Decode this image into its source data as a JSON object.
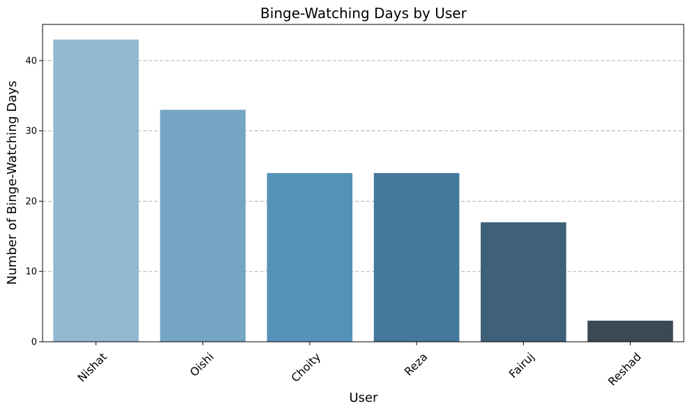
{
  "chart_data": {
    "type": "bar",
    "title": "Binge-Watching Days by User",
    "xlabel": "User",
    "ylabel": "Number of Binge-Watching Days",
    "categories": [
      "Nishat",
      "Oishi",
      "Choity",
      "Reza",
      "Fairuj",
      "Reshad"
    ],
    "values": [
      43,
      33,
      24,
      24,
      17,
      3
    ],
    "colors": [
      "#95b8d1",
      "#74a5c4",
      "#5691b9",
      "#44799d",
      "#3e6079",
      "#3a4956"
    ],
    "ylim": [
      0,
      45.15
    ],
    "yticks": [
      "0",
      "10",
      "20",
      "30",
      "40"
    ],
    "grid": "y-dashed",
    "xtick_rotation": 45
  }
}
